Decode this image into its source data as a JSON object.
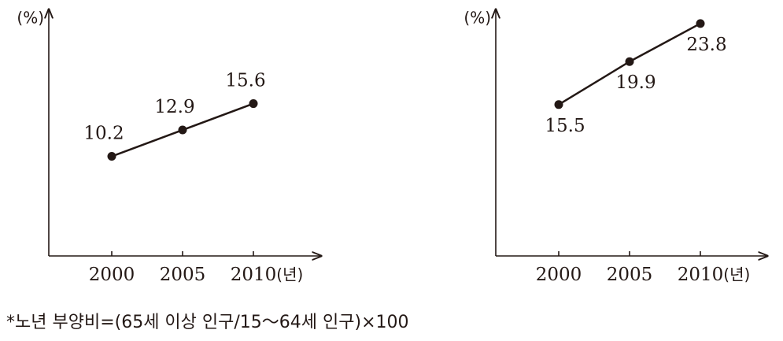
{
  "chart_data": [
    {
      "type": "line",
      "y_label": "(%)",
      "x_label": "(년)",
      "categories": [
        "2000",
        "2005",
        "2010"
      ],
      "values": [
        10.2,
        12.9,
        15.6
      ],
      "color": "#231815",
      "ylim": [
        0,
        25
      ],
      "label_position": "above"
    },
    {
      "type": "line",
      "y_label": "(%)",
      "x_label": "(년)",
      "categories": [
        "2000",
        "2005",
        "2010"
      ],
      "values": [
        15.5,
        19.9,
        23.8
      ],
      "color": "#231815",
      "ylim": [
        0,
        25
      ],
      "label_position": "below"
    }
  ],
  "note": "*노년 부양비=(65세 이상 인구/15～64세 인구)×100"
}
